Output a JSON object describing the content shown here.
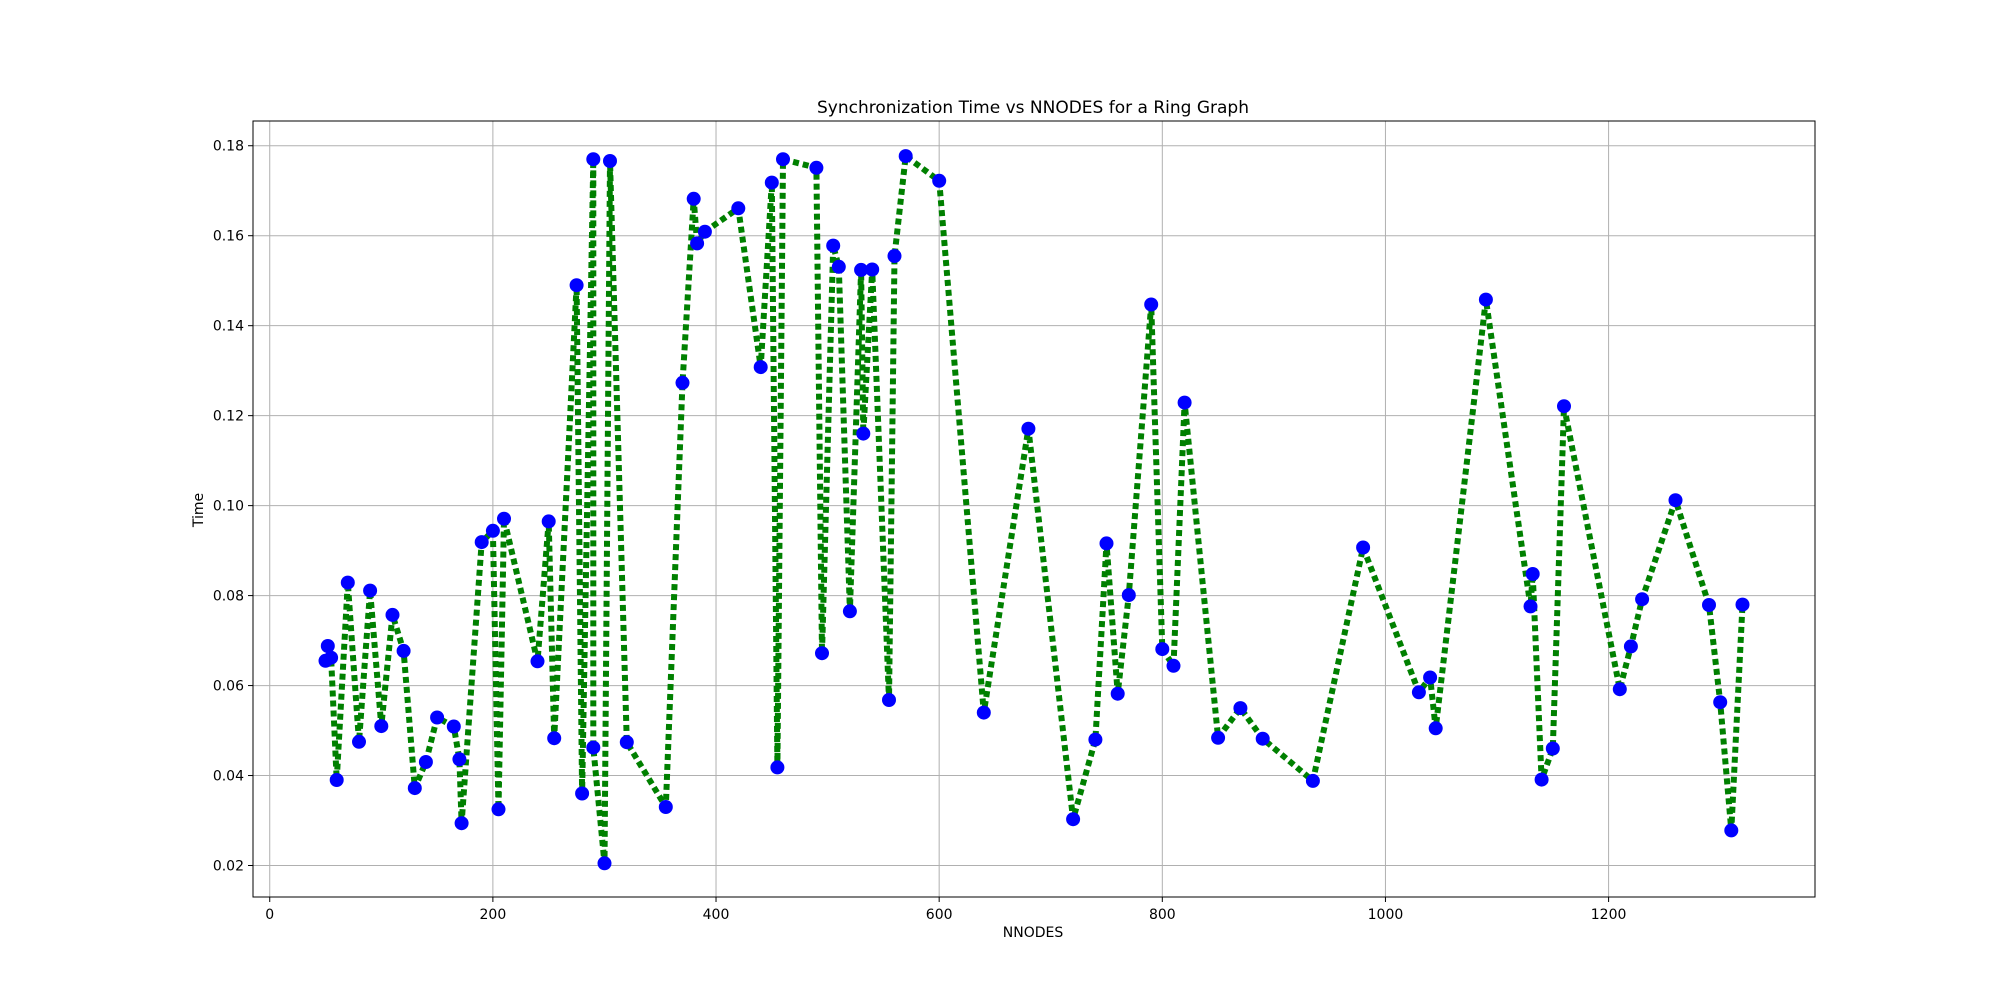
{
  "chart_data": {
    "type": "line",
    "title": "Synchronization Time vs NNODES for a Ring Graph",
    "xlabel": "NNODES",
    "ylabel": "Time",
    "xlim": [
      -15,
      1385
    ],
    "ylim": [
      0.013,
      0.1855
    ],
    "xticks": [
      0,
      200,
      400,
      600,
      800,
      1000,
      1200
    ],
    "xtick_labels": [
      "0",
      "200",
      "400",
      "600",
      "800",
      "1000",
      "1200"
    ],
    "yticks": [
      0.02,
      0.04,
      0.06,
      0.08,
      0.1,
      0.12,
      0.14,
      0.16,
      0.18
    ],
    "ytick_labels": [
      "0.02",
      "0.04",
      "0.06",
      "0.08",
      "0.10",
      "0.12",
      "0.14",
      "0.16",
      "0.18"
    ],
    "grid": true,
    "legend": "none",
    "line_color": "#008000",
    "line_style": "dotted",
    "marker_color": "#0000ff",
    "marker": "circle",
    "series": [
      {
        "x": [
          50,
          52,
          55,
          60,
          70,
          80,
          90,
          100,
          110,
          120,
          130,
          140,
          150,
          165,
          170,
          172,
          190,
          200,
          205,
          210,
          240,
          250,
          255,
          275,
          280,
          290,
          290,
          300,
          305,
          320,
          355,
          370,
          380,
          383,
          390,
          420,
          440,
          450,
          455,
          460,
          490,
          495,
          505,
          510,
          520,
          530,
          532,
          540,
          555,
          560,
          570,
          600,
          640,
          680,
          720,
          740,
          750,
          760,
          770,
          790,
          800,
          810,
          820,
          850,
          870,
          890,
          935,
          980,
          1030,
          1040,
          1045,
          1090,
          1130,
          1132,
          1140,
          1150,
          1160,
          1210,
          1220,
          1230,
          1260,
          1290,
          1300,
          1310,
          1320
        ],
        "y": [
          0.0655,
          0.0688,
          0.0662,
          0.039,
          0.0829,
          0.0475,
          0.0811,
          0.051,
          0.0757,
          0.0677,
          0.0372,
          0.043,
          0.0529,
          0.0509,
          0.0436,
          0.0294,
          0.0919,
          0.0944,
          0.0325,
          0.0971,
          0.0654,
          0.0965,
          0.0483,
          0.149,
          0.036,
          0.177,
          0.0462,
          0.0205,
          0.1766,
          0.0474,
          0.033,
          0.1273,
          0.1682,
          0.1583,
          0.1609,
          0.1661,
          0.1308,
          0.1718,
          0.0418,
          0.177,
          0.1751,
          0.0672,
          0.1578,
          0.1531,
          0.0765,
          0.1524,
          0.116,
          0.1525,
          0.0568,
          0.1555,
          0.1777,
          0.1722,
          0.054,
          0.1171,
          0.0303,
          0.048,
          0.0916,
          0.0582,
          0.0801,
          0.1447,
          0.0681,
          0.0644,
          0.1229,
          0.0484,
          0.055,
          0.0482,
          0.0388,
          0.0907,
          0.0585,
          0.0618,
          0.0505,
          0.1458,
          0.0776,
          0.0848,
          0.0391,
          0.046,
          0.1221,
          0.0592,
          0.0687,
          0.0792,
          0.1012,
          0.0779,
          0.0563,
          0.0278,
          0.078
        ]
      }
    ]
  }
}
